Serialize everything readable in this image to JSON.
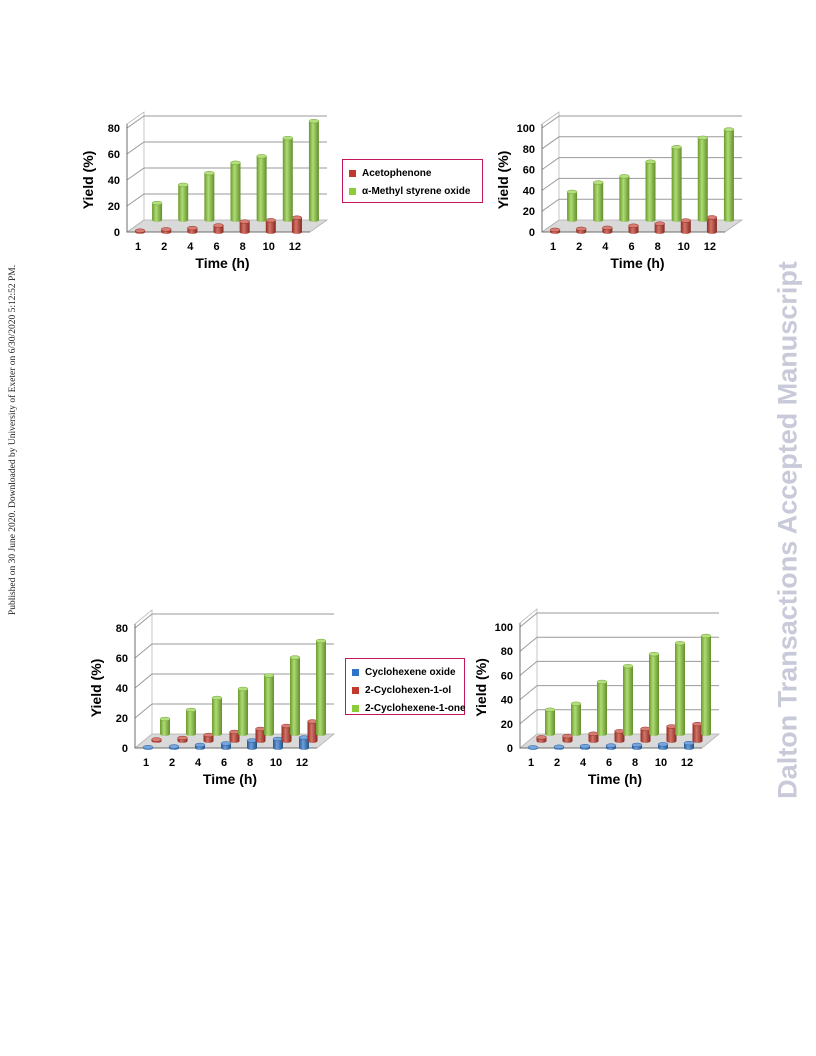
{
  "page": {
    "watermark": "Dalton Transactions Accepted Manuscript",
    "side_note": "Published on 30 June 2020. Downloaded by University of Exeter on 6/30/2020 5:12:52 PM."
  },
  "colors": {
    "green": "#8ccc3a",
    "red": "#c0392b",
    "blue": "#2e75c7"
  },
  "chart_data": [
    {
      "type": "bar",
      "categories": [
        "1",
        "2",
        "4",
        "6",
        "8",
        "10",
        "12"
      ],
      "xlabel": "Time (h)",
      "ylabel": "Yield (%)",
      "ylim": [
        0,
        80
      ],
      "yticks": [
        0,
        20,
        40,
        60,
        80
      ],
      "grid": true,
      "legend": "right",
      "series": [
        {
          "name": "Acetophenone",
          "color": "red",
          "values": [
            1,
            2,
            3,
            5,
            8,
            9,
            11
          ]
        },
        {
          "name": "α-Methyl styrene oxide",
          "color": "green",
          "values": [
            13,
            27,
            36,
            44,
            49,
            63,
            76
          ]
        }
      ]
    },
    {
      "type": "bar",
      "categories": [
        "1",
        "2",
        "4",
        "6",
        "8",
        "10",
        "12"
      ],
      "xlabel": "Time (h)",
      "ylabel": "Yield (%)",
      "ylim": [
        0,
        100
      ],
      "yticks": [
        0,
        20,
        40,
        60,
        80,
        100
      ],
      "grid": true,
      "series": [
        {
          "color": "red",
          "values": [
            2,
            3,
            4,
            6,
            8,
            11,
            14
          ]
        },
        {
          "color": "green",
          "values": [
            27,
            36,
            42,
            56,
            70,
            79,
            87
          ]
        }
      ]
    },
    {
      "type": "bar",
      "categories": [
        "1",
        "2",
        "4",
        "6",
        "8",
        "10",
        "12"
      ],
      "xlabel": "Time (h)",
      "ylabel": "Yield (%)",
      "ylim": [
        0,
        80
      ],
      "yticks": [
        0,
        20,
        40,
        60,
        80
      ],
      "grid": true,
      "legend": "right",
      "series": [
        {
          "name": "Cyclohexene oxide",
          "color": "blue",
          "values": [
            0.5,
            1,
            2,
            3,
            5,
            6,
            7
          ]
        },
        {
          "name": "2-Cyclohexen-1-ol",
          "color": "red",
          "values": [
            1,
            2,
            4,
            6,
            8,
            10,
            13
          ]
        },
        {
          "name": "2-Cyclohexene-1-one",
          "color": "green",
          "values": [
            10,
            16,
            24,
            30,
            39,
            51,
            62
          ]
        }
      ]
    },
    {
      "type": "bar",
      "categories": [
        "1",
        "2",
        "4",
        "6",
        "8",
        "10",
        "12"
      ],
      "xlabel": "Time (h)",
      "ylabel": "Yield (%)",
      "ylim": [
        0,
        100
      ],
      "yticks": [
        0,
        20,
        40,
        60,
        80,
        100
      ],
      "grid": true,
      "series": [
        {
          "color": "blue",
          "values": [
            0.5,
            1,
            1.5,
            2,
            2.5,
            3,
            4
          ]
        },
        {
          "color": "red",
          "values": [
            3,
            4,
            6,
            8,
            10,
            12,
            14
          ]
        },
        {
          "color": "green",
          "values": [
            20,
            25,
            43,
            56,
            66,
            75,
            81
          ]
        }
      ]
    }
  ]
}
